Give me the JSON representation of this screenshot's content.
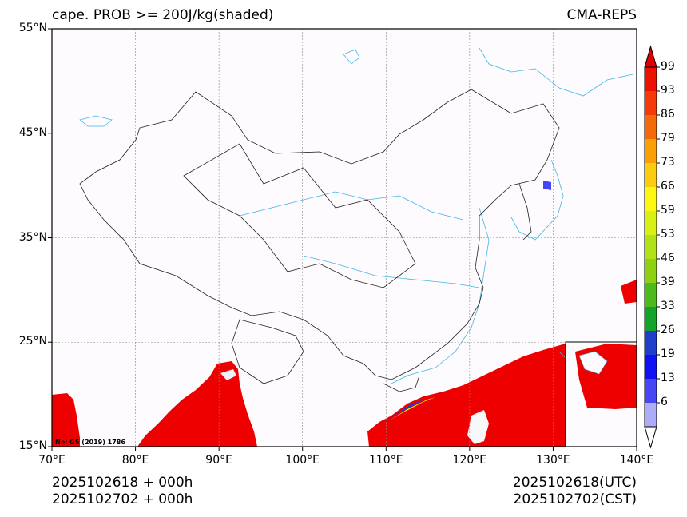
{
  "title_left": "cape. PROB >= 200J/kg(shaded)",
  "title_right": "CMA-REPS",
  "map": {
    "lon_ticks": [
      "70°E",
      "80°E",
      "90°E",
      "100°E",
      "110°E",
      "120°E",
      "130°E",
      "140°E"
    ],
    "lat_ticks": [
      "55°N",
      "45°N",
      "35°N",
      "25°N",
      "15°N"
    ],
    "lon_range": [
      70,
      140
    ],
    "lat_range": [
      15,
      55
    ],
    "map_number": "No: GS (2019) 1786",
    "colors": {
      "background": "#fdfbfd",
      "shade_high": "#ee0000",
      "border": "#222222",
      "river": "#3fb6e6",
      "grid": "#888888"
    }
  },
  "colorbar": {
    "levels": [
      "99",
      "93",
      "86",
      "79",
      "73",
      "66",
      "59",
      "53",
      "46",
      "39",
      "33",
      "26",
      "19",
      "13",
      "6"
    ],
    "colors": [
      "#ee1100",
      "#f53a0a",
      "#f56a08",
      "#fb9f08",
      "#fccc10",
      "#fcf712",
      "#d7f114",
      "#b1e118",
      "#8ed114",
      "#4cb91c",
      "#13a22a",
      "#1f3ecc",
      "#1010f5",
      "#4646f5",
      "#acacf9"
    ],
    "top_color": "#dd0000",
    "bottom_color": "#ffffff"
  },
  "footer": {
    "left_line1": "2025102618  +  000h",
    "left_line2": "2025102702  +  000h",
    "right_line1": "2025102618(UTC)",
    "right_line2": "2025102702(CST)"
  }
}
